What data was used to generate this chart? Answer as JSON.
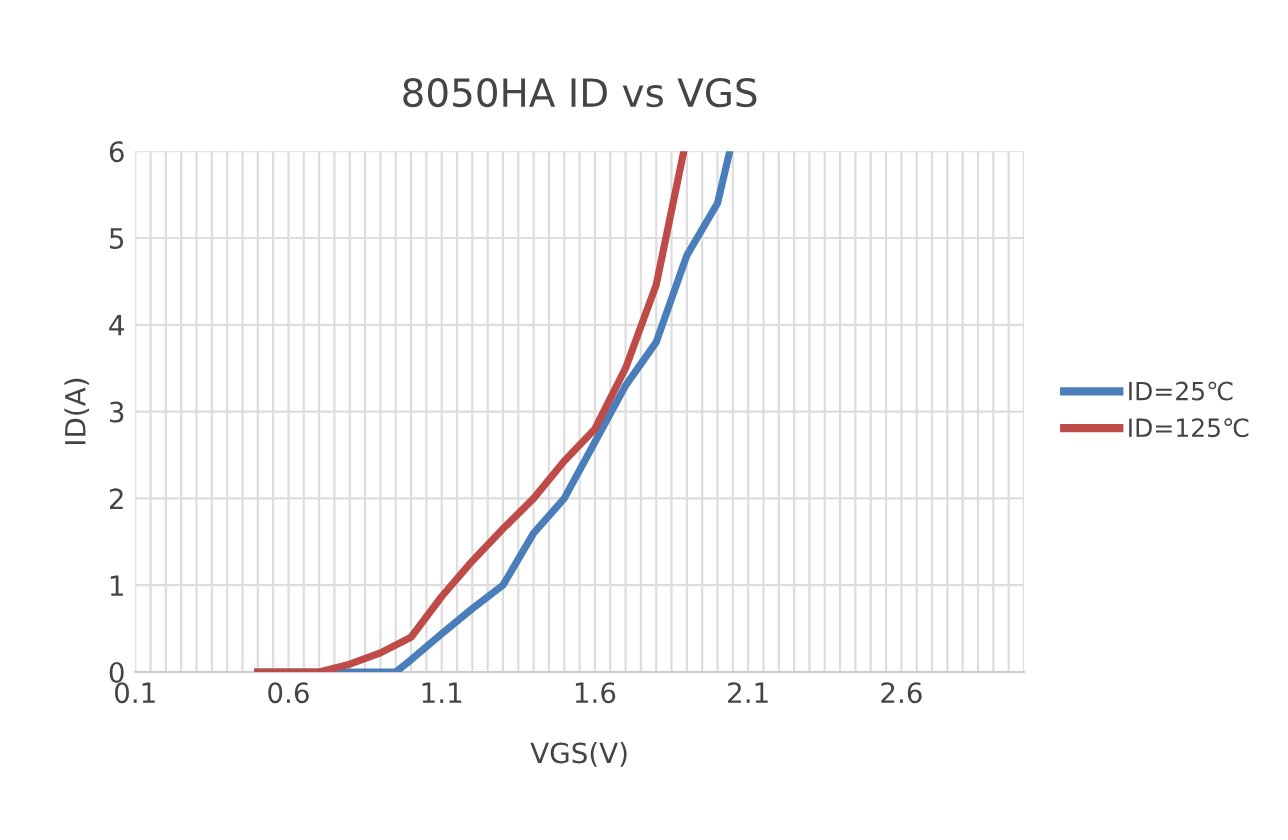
{
  "chart_data": {
    "type": "line",
    "title": "8050HA ID vs VGS",
    "xlabel": "VGS(V)",
    "ylabel": "ID(A)",
    "xlim": [
      0.1,
      3.0
    ],
    "ylim": [
      0,
      6
    ],
    "xticks": [
      0.1,
      {
        "value": 0.15,
        "label": null
      },
      {
        "value": 0.2,
        "label": null
      },
      {
        "value": 0.25,
        "label": null
      },
      {
        "value": 0.3,
        "label": null
      },
      {
        "value": 0.35,
        "label": null
      },
      {
        "value": 0.4,
        "label": null
      },
      {
        "value": 0.45,
        "label": null
      },
      {
        "value": 0.5,
        "label": null
      },
      {
        "value": 0.55,
        "label": null
      },
      0.6,
      {
        "value": 0.65,
        "label": null
      },
      {
        "value": 0.7,
        "label": null
      },
      {
        "value": 0.75,
        "label": null
      },
      {
        "value": 0.8,
        "label": null
      },
      {
        "value": 0.85,
        "label": null
      },
      {
        "value": 0.9,
        "label": null
      },
      {
        "value": 0.95,
        "label": null
      },
      {
        "value": 1.0,
        "label": null
      },
      {
        "value": 1.05,
        "label": null
      },
      1.1,
      {
        "value": 1.15,
        "label": null
      },
      {
        "value": 1.2,
        "label": null
      },
      {
        "value": 1.25,
        "label": null
      },
      {
        "value": 1.3,
        "label": null
      },
      {
        "value": 1.35,
        "label": null
      },
      {
        "value": 1.4,
        "label": null
      },
      {
        "value": 1.45,
        "label": null
      },
      {
        "value": 1.5,
        "label": null
      },
      {
        "value": 1.55,
        "label": null
      },
      1.6,
      {
        "value": 1.65,
        "label": null
      },
      {
        "value": 1.7,
        "label": null
      },
      {
        "value": 1.75,
        "label": null
      },
      {
        "value": 1.8,
        "label": null
      },
      {
        "value": 1.85,
        "label": null
      },
      {
        "value": 1.9,
        "label": null
      },
      {
        "value": 1.95,
        "label": null
      },
      {
        "value": 2.0,
        "label": null
      },
      {
        "value": 2.05,
        "label": null
      },
      2.1,
      {
        "value": 2.15,
        "label": null
      },
      {
        "value": 2.2,
        "label": null
      },
      {
        "value": 2.25,
        "label": null
      },
      {
        "value": 2.3,
        "label": null
      },
      {
        "value": 2.35,
        "label": null
      },
      {
        "value": 2.4,
        "label": null
      },
      {
        "value": 2.45,
        "label": null
      },
      {
        "value": 2.5,
        "label": null
      },
      {
        "value": 2.55,
        "label": null
      },
      2.6,
      {
        "value": 2.65,
        "label": null
      },
      {
        "value": 2.7,
        "label": null
      },
      {
        "value": 2.75,
        "label": null
      },
      {
        "value": 2.8,
        "label": null
      },
      {
        "value": 2.85,
        "label": null
      },
      {
        "value": 2.9,
        "label": null
      },
      {
        "value": 2.95,
        "label": null
      },
      {
        "value": 3.0,
        "label": null
      }
    ],
    "yticks": [
      0,
      1,
      2,
      3,
      4,
      5,
      6
    ],
    "grid": true,
    "legend": "right",
    "marker": "none",
    "line_style": "solid",
    "series": [
      {
        "name": "ID=25℃",
        "color": "#4a7ebb",
        "x": [
          0.5,
          0.6,
          0.7,
          0.8,
          0.9,
          0.95,
          1.0,
          1.1,
          1.2,
          1.3,
          1.4,
          1.5,
          1.6,
          1.7,
          1.8,
          1.9,
          2.0,
          2.04
        ],
        "values": [
          0,
          0,
          0,
          0,
          0,
          0,
          0.14,
          0.44,
          0.73,
          1.0,
          1.6,
          2.0,
          2.65,
          3.3,
          3.8,
          4.8,
          5.4,
          6.0
        ]
      },
      {
        "name": "ID=125℃",
        "color": "#be4b48",
        "x": [
          0.5,
          0.6,
          0.7,
          0.8,
          0.9,
          1.0,
          1.1,
          1.2,
          1.3,
          1.4,
          1.5,
          1.6,
          1.7,
          1.8,
          1.89
        ],
        "values": [
          0,
          0,
          0,
          0.09,
          0.22,
          0.4,
          0.87,
          1.28,
          1.65,
          2.0,
          2.43,
          2.8,
          3.5,
          4.46,
          6.0
        ]
      }
    ]
  }
}
